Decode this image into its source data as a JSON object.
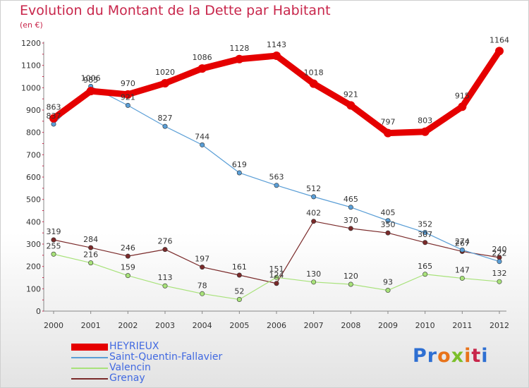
{
  "header": {
    "title": "Evolution du Montant de la Dette par Habitant",
    "subtitle": "(en €)"
  },
  "logo": {
    "text": "Proxiti",
    "colors": [
      "#2e6fd2",
      "#2e6fd2",
      "#e8731a",
      "#7bbf2a",
      "#e8731a",
      "#c8264b",
      "#2e6fd2"
    ]
  },
  "chart_data": {
    "type": "line",
    "title": "Evolution du Montant de la Dette par Habitant",
    "subtitle": "(en €)",
    "xlabel": "",
    "ylabel": "",
    "x": [
      "2000",
      "2001",
      "2002",
      "2003",
      "2004",
      "2005",
      "2006",
      "2007",
      "2008",
      "2009",
      "2010",
      "2011",
      "2012"
    ],
    "ylim": [
      0,
      1200
    ],
    "yticks": [
      "0",
      "100",
      "200",
      "300",
      "400",
      "500",
      "600",
      "700",
      "800",
      "900",
      "1000",
      "1100",
      "1200"
    ],
    "grid": false,
    "legend": "bottom-left",
    "series": [
      {
        "name": "HEYRIEUX",
        "color": "#e50000",
        "values": [
          863,
          985,
          970,
          1020,
          1086,
          1128,
          1143,
          1018,
          921,
          797,
          803,
          915,
          1164
        ],
        "labels": [
          "863",
          "985",
          "970",
          "1020",
          "1086",
          "1128",
          "1143",
          "1018",
          "921",
          "797",
          "803",
          "915",
          "1164"
        ]
      },
      {
        "name": "Saint-Quentin-Fallavier",
        "color": "#5a9ed6",
        "values": [
          837,
          1006,
          921,
          827,
          744,
          619,
          563,
          512,
          465,
          405,
          352,
          274,
          222
        ],
        "labels": [
          "837",
          "1006",
          "921",
          "827",
          "744",
          "619",
          "563",
          "512",
          "465",
          "405",
          "352",
          "274",
          "222"
        ]
      },
      {
        "name": "Valencin",
        "color": "#a8e27a",
        "values": [
          255,
          216,
          159,
          113,
          78,
          52,
          151,
          130,
          120,
          93,
          165,
          147,
          132
        ],
        "labels": [
          "255",
          "216",
          "159",
          "113",
          "78",
          "52",
          "151",
          "130",
          "120",
          "93",
          "165",
          "147",
          "132"
        ]
      },
      {
        "name": "Grenay",
        "color": "#7a2a2a",
        "values": [
          319,
          284,
          246,
          276,
          197,
          161,
          124,
          402,
          370,
          350,
          307,
          267,
          240
        ],
        "labels": [
          "319",
          "284",
          "246",
          "276",
          "197",
          "161",
          "124",
          "402",
          "370",
          "350",
          "307",
          "267",
          "240"
        ]
      }
    ]
  }
}
